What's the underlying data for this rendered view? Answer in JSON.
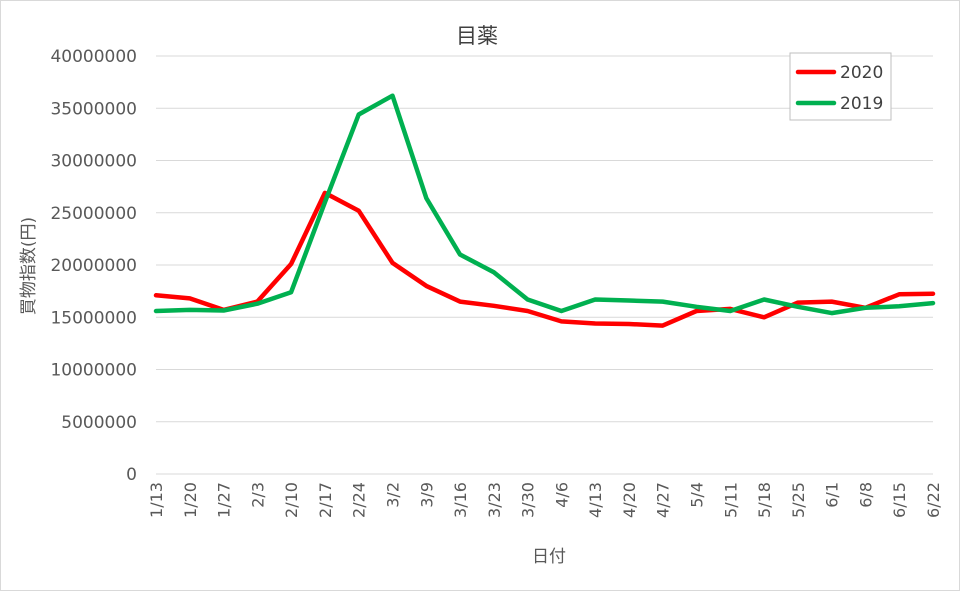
{
  "chart_data": {
    "type": "line",
    "title": "目薬",
    "xlabel": "日付",
    "ylabel": "買物指数(円)",
    "categories": [
      "1/13",
      "1/20",
      "1/27",
      "2/3",
      "2/10",
      "2/17",
      "2/24",
      "3/2",
      "3/9",
      "3/16",
      "3/23",
      "3/30",
      "4/6",
      "4/13",
      "4/20",
      "4/27",
      "5/4",
      "5/11",
      "5/18",
      "5/25",
      "6/1",
      "6/8",
      "6/15",
      "6/22"
    ],
    "y_ticks": [
      "0",
      "5000000",
      "10000000",
      "15000000",
      "20000000",
      "25000000",
      "30000000",
      "35000000",
      "40000000"
    ],
    "ylim": [
      0,
      40000000
    ],
    "grid": "horizontal",
    "legend_position": "top-right",
    "series": [
      {
        "name": "2020",
        "color": "#ff0000",
        "values": [
          17100000,
          16800000,
          15700000,
          16500000,
          20100000,
          26900000,
          25200000,
          20200000,
          18000000,
          16500000,
          16100000,
          15600000,
          14600000,
          14400000,
          14350000,
          14200000,
          15600000,
          15800000,
          15000000,
          16400000,
          16500000,
          15900000,
          17200000,
          17250000
        ]
      },
      {
        "name": "2019",
        "color": "#00b050",
        "values": [
          15600000,
          15700000,
          15650000,
          16300000,
          17400000,
          26000000,
          34400000,
          36200000,
          26400000,
          21000000,
          19300000,
          16700000,
          15600000,
          16700000,
          16600000,
          16500000,
          16000000,
          15600000,
          16700000,
          16000000,
          15400000,
          15900000,
          16050000,
          16350000
        ]
      }
    ]
  }
}
